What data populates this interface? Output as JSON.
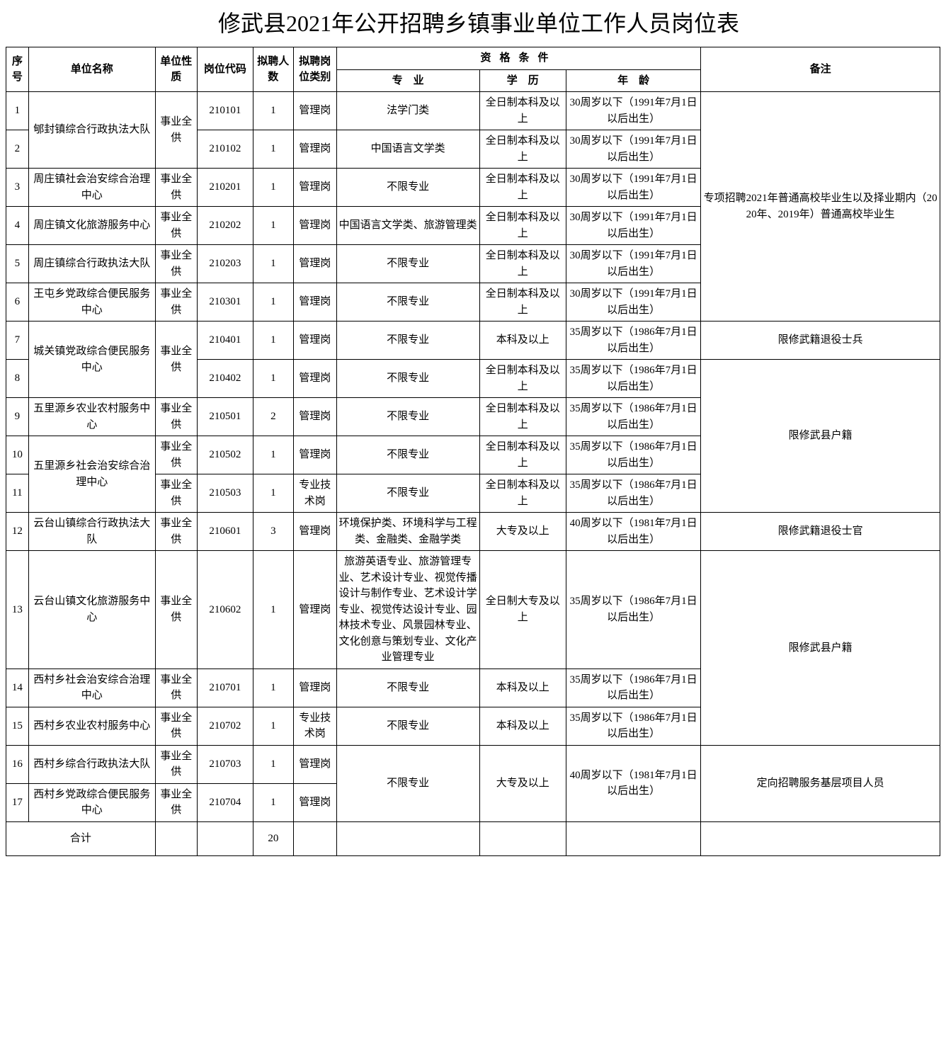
{
  "title": "修武县2021年公开招聘乡镇事业单位工作人员岗位表",
  "headers": {
    "seq": "序号",
    "unit": "单位名称",
    "nature": "单位性质",
    "code": "岗位代码",
    "count": "拟聘人数",
    "type": "拟聘岗位类别",
    "qual_group": "资格条件",
    "major": "专　业",
    "edu": "学　历",
    "age": "年　龄",
    "remark": "备注"
  },
  "rows": [
    {
      "seq": "1",
      "unit": "郇封镇综合行政执法大队",
      "unit_rowspan": 2,
      "nature": "事业全供",
      "nature_rowspan": 2,
      "code": "210101",
      "count": "1",
      "type": "管理岗",
      "major": "法学门类",
      "edu": "全日制本科及以上",
      "age": "30周岁以下（1991年7月1日以后出生）",
      "remark": "专项招聘2021年普通高校毕业生以及择业期内（2020年、2019年）普通高校毕业生",
      "remark_rowspan": 6
    },
    {
      "seq": "2",
      "code": "210102",
      "count": "1",
      "type": "管理岗",
      "major": "中国语言文学类",
      "edu": "全日制本科及以上",
      "age": "30周岁以下（1991年7月1日以后出生）"
    },
    {
      "seq": "3",
      "unit": "周庄镇社会治安综合治理中心",
      "nature": "事业全供",
      "code": "210201",
      "count": "1",
      "type": "管理岗",
      "major": "不限专业",
      "edu": "全日制本科及以上",
      "age": "30周岁以下（1991年7月1日以后出生）"
    },
    {
      "seq": "4",
      "unit": "周庄镇文化旅游服务中心",
      "nature": "事业全供",
      "code": "210202",
      "count": "1",
      "type": "管理岗",
      "major": "中国语言文学类、旅游管理类",
      "edu": "全日制本科及以上",
      "age": "30周岁以下（1991年7月1日以后出生）"
    },
    {
      "seq": "5",
      "unit": "周庄镇综合行政执法大队",
      "nature": "事业全供",
      "code": "210203",
      "count": "1",
      "type": "管理岗",
      "major": "不限专业",
      "edu": "全日制本科及以上",
      "age": "30周岁以下（1991年7月1日以后出生）"
    },
    {
      "seq": "6",
      "unit": "王屯乡党政综合便民服务中心",
      "nature": "事业全供",
      "code": "210301",
      "count": "1",
      "type": "管理岗",
      "major": "不限专业",
      "edu": "全日制本科及以上",
      "age": "30周岁以下（1991年7月1日以后出生）"
    },
    {
      "seq": "7",
      "unit": "城关镇党政综合便民服务中心",
      "unit_rowspan": 2,
      "nature": "事业全供",
      "nature_rowspan": 2,
      "code": "210401",
      "count": "1",
      "type": "管理岗",
      "major": "不限专业",
      "edu": "本科及以上",
      "age": "35周岁以下（1986年7月1日以后出生）",
      "remark": "限修武籍退役士兵"
    },
    {
      "seq": "8",
      "code": "210402",
      "count": "1",
      "type": "管理岗",
      "major": "不限专业",
      "edu": "全日制本科及以上",
      "age": "35周岁以下（1986年7月1日以后出生）",
      "remark": "限修武县户籍",
      "remark_rowspan": 4
    },
    {
      "seq": "9",
      "unit": "五里源乡农业农村服务中心",
      "nature": "事业全供",
      "code": "210501",
      "count": "2",
      "type": "管理岗",
      "major": "不限专业",
      "edu": "全日制本科及以上",
      "age": "35周岁以下（1986年7月1日以后出生）"
    },
    {
      "seq": "10",
      "unit": "五里源乡社会治安综合治理中心",
      "unit_rowspan": 2,
      "nature": "事业全供",
      "code": "210502",
      "count": "1",
      "type": "管理岗",
      "major": "不限专业",
      "edu": "全日制本科及以上",
      "age": "35周岁以下（1986年7月1日以后出生）"
    },
    {
      "seq": "11",
      "nature": "事业全供",
      "code": "210503",
      "count": "1",
      "type": "专业技术岗",
      "major": "不限专业",
      "edu": "全日制本科及以上",
      "age": "35周岁以下（1986年7月1日以后出生）"
    },
    {
      "seq": "12",
      "unit": "云台山镇综合行政执法大队",
      "nature": "事业全供",
      "code": "210601",
      "count": "3",
      "type": "管理岗",
      "major": "环境保护类、环境科学与工程类、金融类、金融学类",
      "edu": "大专及以上",
      "age": "40周岁以下（1981年7月1日以后出生）",
      "remark": "限修武籍退役士官"
    },
    {
      "seq": "13",
      "unit": "云台山镇文化旅游服务中心",
      "nature": "事业全供",
      "code": "210602",
      "count": "1",
      "type": "管理岗",
      "major": "旅游英语专业、旅游管理专业、艺术设计专业、视觉传播设计与制作专业、艺术设计学专业、视觉传达设计专业、园林技术专业、风景园林专业、文化创意与策划专业、文化产业管理专业",
      "edu": "全日制大专及以上",
      "age": "35周岁以下（1986年7月1日以后出生）",
      "remark": "限修武县户籍",
      "remark_rowspan": 3
    },
    {
      "seq": "14",
      "unit": "西村乡社会治安综合治理中心",
      "nature": "事业全供",
      "code": "210701",
      "count": "1",
      "type": "管理岗",
      "major": "不限专业",
      "edu": "本科及以上",
      "age": "35周岁以下（1986年7月1日以后出生）"
    },
    {
      "seq": "15",
      "unit": "西村乡农业农村服务中心",
      "nature": "事业全供",
      "code": "210702",
      "count": "1",
      "type": "专业技术岗",
      "major": "不限专业",
      "edu": "本科及以上",
      "age": "35周岁以下（1986年7月1日以后出生）"
    },
    {
      "seq": "16",
      "unit": "西村乡综合行政执法大队",
      "nature": "事业全供",
      "code": "210703",
      "count": "1",
      "type": "管理岗",
      "major": "不限专业",
      "major_rowspan": 2,
      "edu": "大专及以上",
      "edu_rowspan": 2,
      "age": "40周岁以下（1981年7月1日以后出生）",
      "age_rowspan": 2,
      "remark": "定向招聘服务基层项目人员",
      "remark_rowspan": 2
    },
    {
      "seq": "17",
      "unit": "西村乡党政综合便民服务中心",
      "nature": "事业全供",
      "code": "210704",
      "count": "1",
      "type": "管理岗"
    }
  ],
  "total": {
    "label": "合计",
    "count": "20"
  }
}
